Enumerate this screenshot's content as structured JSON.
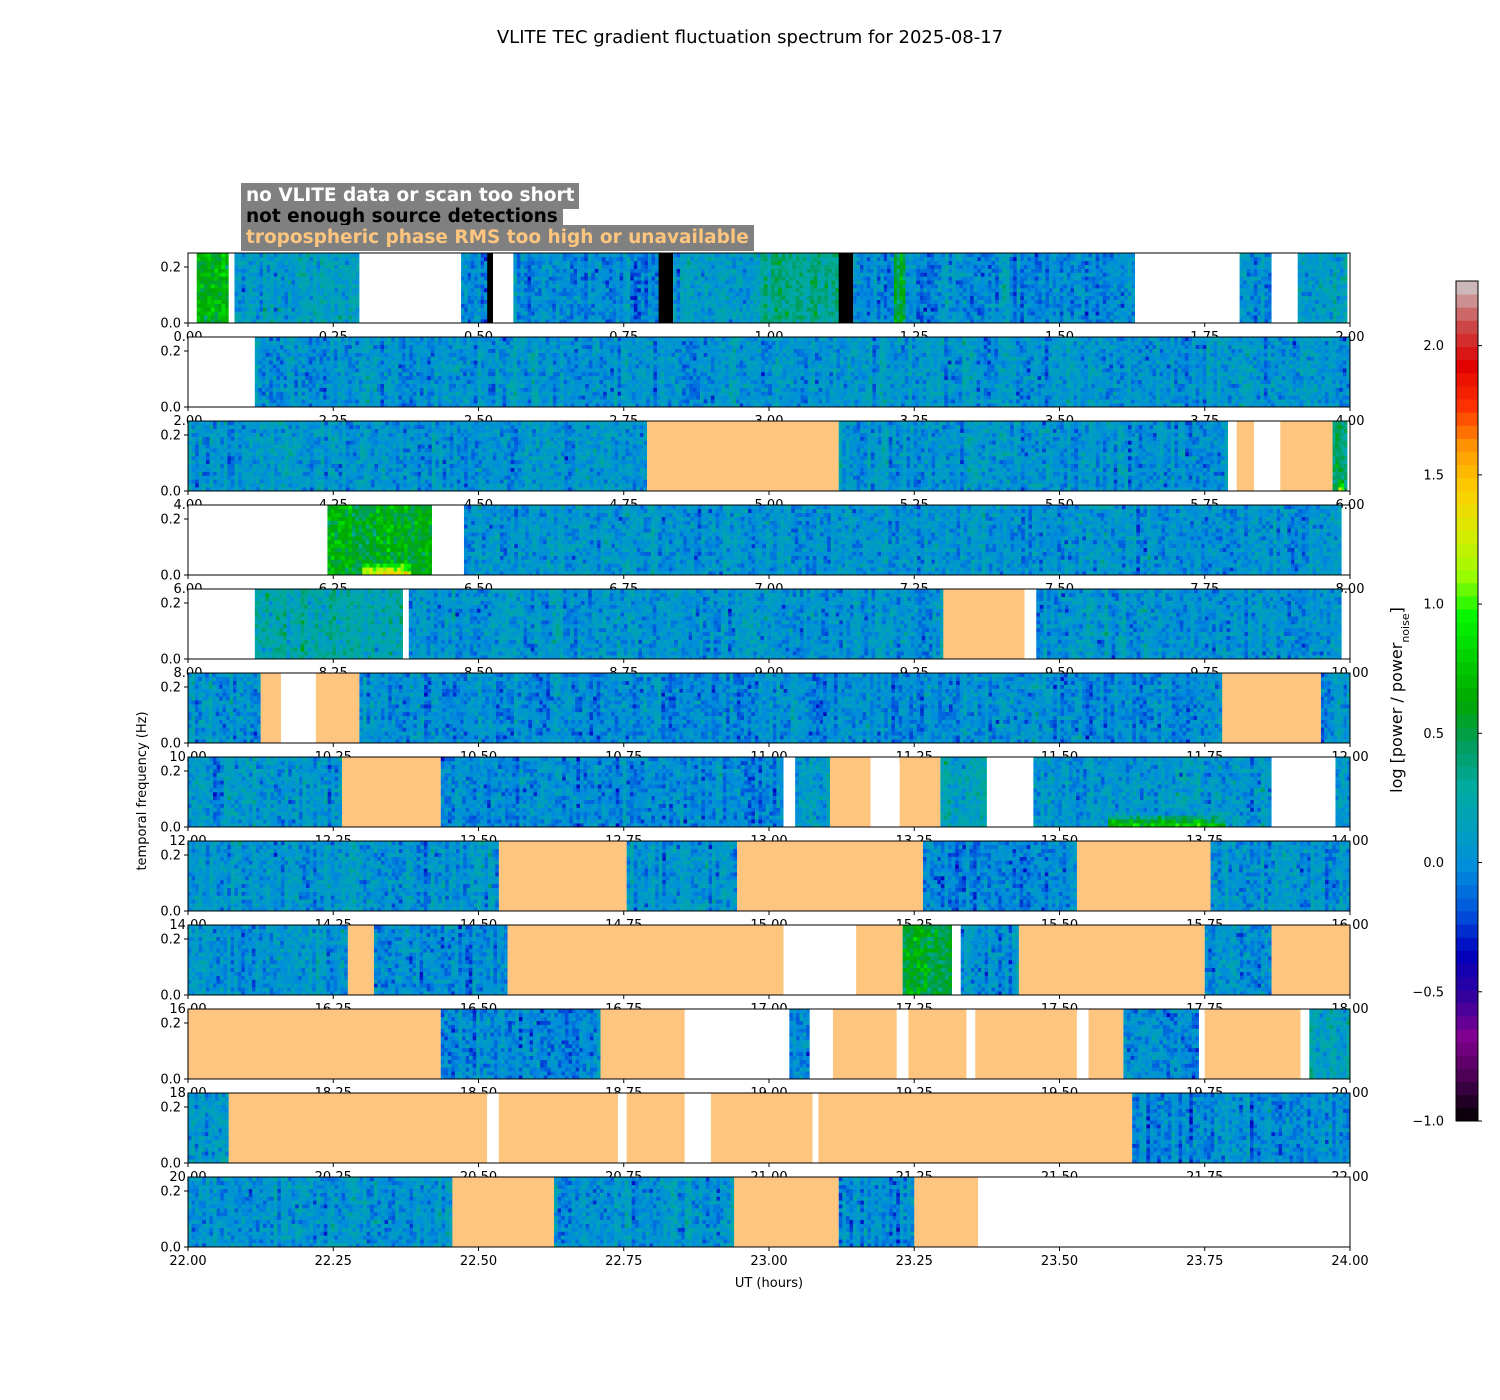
{
  "chart_data": {
    "type": "heatmap",
    "title": "VLITE TEC gradient fluctuation spectrum for 2025-08-17",
    "xlabel": "UT (hours)",
    "ylabel": "temporal frequency (Hz)",
    "ylim": [
      0,
      0.25
    ],
    "yticks": [
      0.0,
      0.2
    ],
    "ytick_labels": [
      "0.0",
      "0.2"
    ],
    "colorbar": {
      "label": "log [power / power",
      "label_sub": "noise",
      "label_end": "]",
      "range": [
        -1.0,
        2.25
      ],
      "ticks": [
        -1.0,
        -0.5,
        0.0,
        0.5,
        1.0,
        1.5,
        2.0
      ],
      "tick_labels": [
        "−1.0",
        "−0.5",
        "0.0",
        "0.5",
        "1.0",
        "1.5",
        "2.0"
      ]
    },
    "legend": [
      {
        "text": "no VLITE data or scan too short",
        "color": "#ffffff",
        "status": "no_data"
      },
      {
        "text": "not enough source detections",
        "color": "#000000",
        "status": "few_detections"
      },
      {
        "text": "tropospheric phase RMS too high or unavailable",
        "color": "#fdc57e",
        "status": "tropo"
      }
    ],
    "panels": [
      {
        "xlim": [
          0,
          2
        ],
        "xticks": [
          "0.00",
          "0.25",
          "0.50",
          "0.75",
          "1.00",
          "1.25",
          "1.50",
          "1.75",
          "2.00"
        ],
        "segments": [
          {
            "start": 0.0,
            "end": 0.015,
            "status": "no_data"
          },
          {
            "start": 0.015,
            "end": 0.07,
            "status": "data",
            "level": 0.6
          },
          {
            "start": 0.07,
            "end": 0.08,
            "status": "no_data"
          },
          {
            "start": 0.08,
            "end": 0.295,
            "status": "data",
            "level": 0.1
          },
          {
            "start": 0.295,
            "end": 0.47,
            "status": "no_data"
          },
          {
            "start": 0.47,
            "end": 0.515,
            "status": "data",
            "level": 0.0
          },
          {
            "start": 0.515,
            "end": 0.525,
            "status": "few_detections"
          },
          {
            "start": 0.525,
            "end": 0.56,
            "status": "no_data"
          },
          {
            "start": 0.56,
            "end": 0.81,
            "status": "data",
            "level": 0.0
          },
          {
            "start": 0.81,
            "end": 0.835,
            "status": "few_detections"
          },
          {
            "start": 0.835,
            "end": 0.985,
            "status": "data",
            "level": 0.1
          },
          {
            "start": 0.985,
            "end": 1.12,
            "status": "data",
            "level": 0.35
          },
          {
            "start": 1.12,
            "end": 1.145,
            "status": "few_detections"
          },
          {
            "start": 1.145,
            "end": 1.215,
            "status": "data",
            "level": 0.0
          },
          {
            "start": 1.215,
            "end": 1.235,
            "status": "data",
            "level": 0.55
          },
          {
            "start": 1.235,
            "end": 1.63,
            "status": "data",
            "level": 0.0
          },
          {
            "start": 1.63,
            "end": 1.81,
            "status": "no_data"
          },
          {
            "start": 1.81,
            "end": 1.865,
            "status": "data",
            "level": 0.05
          },
          {
            "start": 1.865,
            "end": 1.91,
            "status": "no_data"
          },
          {
            "start": 1.91,
            "end": 1.995,
            "status": "data",
            "level": 0.1
          }
        ]
      },
      {
        "xlim": [
          2,
          4
        ],
        "xticks": [
          "2.00",
          "2.25",
          "2.50",
          "2.75",
          "3.00",
          "3.25",
          "3.50",
          "3.75",
          "4.00"
        ],
        "segments": [
          {
            "start": 2.0,
            "end": 2.115,
            "status": "no_data"
          },
          {
            "start": 2.115,
            "end": 4.0,
            "status": "data",
            "level": 0.05
          }
        ]
      },
      {
        "xlim": [
          4,
          6
        ],
        "xticks": [
          "4.00",
          "4.25",
          "4.50",
          "4.75",
          "5.00",
          "5.25",
          "5.50",
          "5.75",
          "6.00"
        ],
        "segments": [
          {
            "start": 4.0,
            "end": 4.79,
            "status": "data",
            "level": 0.05
          },
          {
            "start": 4.79,
            "end": 5.12,
            "status": "tropo"
          },
          {
            "start": 5.12,
            "end": 5.79,
            "status": "data",
            "level": 0.05
          },
          {
            "start": 5.79,
            "end": 5.805,
            "status": "no_data"
          },
          {
            "start": 5.805,
            "end": 5.835,
            "status": "tropo"
          },
          {
            "start": 5.835,
            "end": 5.88,
            "status": "no_data"
          },
          {
            "start": 5.88,
            "end": 5.97,
            "status": "tropo"
          },
          {
            "start": 5.97,
            "end": 5.995,
            "status": "data",
            "level": 0.4,
            "hot": true
          }
        ]
      },
      {
        "xlim": [
          6,
          8
        ],
        "xticks": [
          "6.00",
          "6.25",
          "6.50",
          "6.75",
          "7.00",
          "7.25",
          "7.50",
          "7.75",
          "8.00"
        ],
        "segments": [
          {
            "start": 6.0,
            "end": 6.24,
            "status": "no_data"
          },
          {
            "start": 6.24,
            "end": 6.42,
            "status": "data",
            "level": 0.6,
            "hot": true
          },
          {
            "start": 6.42,
            "end": 6.475,
            "status": "no_data"
          },
          {
            "start": 6.475,
            "end": 7.985,
            "status": "data",
            "level": 0.05
          }
        ]
      },
      {
        "xlim": [
          8,
          10
        ],
        "xticks": [
          "8.00",
          "8.25",
          "8.50",
          "8.75",
          "9.00",
          "9.25",
          "9.50",
          "9.75",
          "10.00"
        ],
        "segments": [
          {
            "start": 8.0,
            "end": 8.115,
            "status": "no_data"
          },
          {
            "start": 8.115,
            "end": 8.37,
            "status": "data",
            "level": 0.25
          },
          {
            "start": 8.37,
            "end": 8.38,
            "status": "no_data"
          },
          {
            "start": 8.38,
            "end": 9.3,
            "status": "data",
            "level": 0.05
          },
          {
            "start": 9.3,
            "end": 9.44,
            "status": "tropo"
          },
          {
            "start": 9.44,
            "end": 9.46,
            "status": "no_data"
          },
          {
            "start": 9.46,
            "end": 9.985,
            "status": "data",
            "level": 0.05
          }
        ]
      },
      {
        "xlim": [
          10,
          12
        ],
        "xticks": [
          "10.00",
          "10.25",
          "10.50",
          "10.75",
          "11.00",
          "11.25",
          "11.50",
          "11.75",
          "12.00"
        ],
        "segments": [
          {
            "start": 10.0,
            "end": 10.125,
            "status": "data",
            "level": 0.05
          },
          {
            "start": 10.125,
            "end": 10.16,
            "status": "tropo"
          },
          {
            "start": 10.16,
            "end": 10.22,
            "status": "no_data"
          },
          {
            "start": 10.22,
            "end": 10.295,
            "status": "tropo"
          },
          {
            "start": 10.295,
            "end": 11.78,
            "status": "data",
            "level": 0.0
          },
          {
            "start": 11.78,
            "end": 11.95,
            "status": "tropo"
          },
          {
            "start": 11.95,
            "end": 12.0,
            "status": "data",
            "level": 0.05
          }
        ]
      },
      {
        "xlim": [
          12,
          14
        ],
        "xticks": [
          "12.00",
          "12.25",
          "12.50",
          "12.75",
          "13.00",
          "13.25",
          "13.50",
          "13.75",
          "14.00"
        ],
        "segments": [
          {
            "start": 12.0,
            "end": 12.265,
            "status": "data",
            "level": 0.05
          },
          {
            "start": 12.265,
            "end": 12.435,
            "status": "tropo"
          },
          {
            "start": 12.435,
            "end": 13.025,
            "status": "data",
            "level": 0.0
          },
          {
            "start": 13.025,
            "end": 13.045,
            "status": "no_data"
          },
          {
            "start": 13.045,
            "end": 13.105,
            "status": "data",
            "level": 0.05
          },
          {
            "start": 13.105,
            "end": 13.175,
            "status": "tropo"
          },
          {
            "start": 13.175,
            "end": 13.225,
            "status": "no_data"
          },
          {
            "start": 13.225,
            "end": 13.295,
            "status": "tropo"
          },
          {
            "start": 13.295,
            "end": 13.375,
            "status": "data",
            "level": 0.2
          },
          {
            "start": 13.375,
            "end": 13.455,
            "status": "no_data"
          },
          {
            "start": 13.455,
            "end": 13.865,
            "status": "data",
            "level": 0.05,
            "hot": true
          },
          {
            "start": 13.865,
            "end": 13.975,
            "status": "no_data"
          },
          {
            "start": 13.975,
            "end": 14.0,
            "status": "data",
            "level": 0.05
          }
        ]
      },
      {
        "xlim": [
          14,
          16
        ],
        "xticks": [
          "14.00",
          "14.25",
          "14.50",
          "14.75",
          "15.00",
          "15.25",
          "15.50",
          "15.75",
          "16.00"
        ],
        "segments": [
          {
            "start": 14.0,
            "end": 14.535,
            "status": "data",
            "level": 0.05
          },
          {
            "start": 14.535,
            "end": 14.755,
            "status": "tropo"
          },
          {
            "start": 14.755,
            "end": 14.945,
            "status": "data",
            "level": 0.05
          },
          {
            "start": 14.945,
            "end": 15.265,
            "status": "tropo"
          },
          {
            "start": 15.265,
            "end": 15.53,
            "status": "data",
            "level": 0.0
          },
          {
            "start": 15.53,
            "end": 15.76,
            "status": "tropo"
          },
          {
            "start": 15.76,
            "end": 16.0,
            "status": "data",
            "level": 0.05
          }
        ]
      },
      {
        "xlim": [
          16,
          18
        ],
        "xticks": [
          "16.00",
          "16.25",
          "16.50",
          "16.75",
          "17.00",
          "17.25",
          "17.50",
          "17.75",
          "18.00"
        ],
        "segments": [
          {
            "start": 16.0,
            "end": 16.275,
            "status": "data",
            "level": 0.05
          },
          {
            "start": 16.275,
            "end": 16.32,
            "status": "tropo"
          },
          {
            "start": 16.32,
            "end": 16.55,
            "status": "data",
            "level": 0.0
          },
          {
            "start": 16.55,
            "end": 17.025,
            "status": "tropo"
          },
          {
            "start": 17.025,
            "end": 17.15,
            "status": "no_data"
          },
          {
            "start": 17.15,
            "end": 17.23,
            "status": "tropo"
          },
          {
            "start": 17.23,
            "end": 17.315,
            "status": "data",
            "level": 0.55
          },
          {
            "start": 17.315,
            "end": 17.33,
            "status": "no_data"
          },
          {
            "start": 17.33,
            "end": 17.43,
            "status": "data",
            "level": 0.05
          },
          {
            "start": 17.43,
            "end": 17.75,
            "status": "tropo"
          },
          {
            "start": 17.75,
            "end": 17.865,
            "status": "data",
            "level": 0.0
          },
          {
            "start": 17.865,
            "end": 18.0,
            "status": "tropo"
          }
        ]
      },
      {
        "xlim": [
          18,
          20
        ],
        "xticks": [
          "18.00",
          "18.25",
          "18.50",
          "18.75",
          "19.00",
          "19.25",
          "19.50",
          "19.75",
          "20.00"
        ],
        "segments": [
          {
            "start": 18.0,
            "end": 18.435,
            "status": "tropo"
          },
          {
            "start": 18.435,
            "end": 18.71,
            "status": "data",
            "level": 0.0
          },
          {
            "start": 18.71,
            "end": 18.855,
            "status": "tropo"
          },
          {
            "start": 18.855,
            "end": 19.035,
            "status": "no_data"
          },
          {
            "start": 19.035,
            "end": 19.07,
            "status": "data",
            "level": 0.05
          },
          {
            "start": 19.07,
            "end": 19.11,
            "status": "no_data"
          },
          {
            "start": 19.11,
            "end": 19.22,
            "status": "tropo"
          },
          {
            "start": 19.22,
            "end": 19.24,
            "status": "no_data"
          },
          {
            "start": 19.24,
            "end": 19.34,
            "status": "tropo"
          },
          {
            "start": 19.34,
            "end": 19.355,
            "status": "no_data"
          },
          {
            "start": 19.355,
            "end": 19.53,
            "status": "tropo"
          },
          {
            "start": 19.53,
            "end": 19.55,
            "status": "no_data"
          },
          {
            "start": 19.55,
            "end": 19.61,
            "status": "tropo"
          },
          {
            "start": 19.61,
            "end": 19.74,
            "status": "data",
            "level": 0.0
          },
          {
            "start": 19.74,
            "end": 19.75,
            "status": "no_data"
          },
          {
            "start": 19.75,
            "end": 19.915,
            "status": "tropo"
          },
          {
            "start": 19.915,
            "end": 19.93,
            "status": "no_data"
          },
          {
            "start": 19.93,
            "end": 20.0,
            "status": "data",
            "level": 0.15
          }
        ]
      },
      {
        "xlim": [
          20,
          22
        ],
        "xticks": [
          "20.00",
          "20.25",
          "20.50",
          "20.75",
          "21.00",
          "21.25",
          "21.50",
          "21.75",
          "22.00"
        ],
        "segments": [
          {
            "start": 20.0,
            "end": 20.07,
            "status": "data",
            "level": 0.1
          },
          {
            "start": 20.07,
            "end": 20.515,
            "status": "tropo"
          },
          {
            "start": 20.515,
            "end": 20.535,
            "status": "no_data"
          },
          {
            "start": 20.535,
            "end": 20.74,
            "status": "tropo"
          },
          {
            "start": 20.74,
            "end": 20.755,
            "status": "no_data"
          },
          {
            "start": 20.755,
            "end": 20.855,
            "status": "tropo"
          },
          {
            "start": 20.855,
            "end": 20.9,
            "status": "no_data"
          },
          {
            "start": 20.9,
            "end": 21.075,
            "status": "tropo"
          },
          {
            "start": 21.075,
            "end": 21.085,
            "status": "no_data"
          },
          {
            "start": 21.085,
            "end": 21.625,
            "status": "tropo"
          },
          {
            "start": 21.625,
            "end": 22.0,
            "status": "data",
            "level": 0.0
          }
        ]
      },
      {
        "xlim": [
          22,
          24
        ],
        "xticks": [
          "22.00",
          "22.25",
          "22.50",
          "22.75",
          "23.00",
          "23.25",
          "23.50",
          "23.75",
          "24.00"
        ],
        "segments": [
          {
            "start": 22.0,
            "end": 22.455,
            "status": "data",
            "level": 0.05
          },
          {
            "start": 22.455,
            "end": 22.63,
            "status": "tropo"
          },
          {
            "start": 22.63,
            "end": 22.94,
            "status": "data",
            "level": 0.05
          },
          {
            "start": 22.94,
            "end": 23.12,
            "status": "tropo"
          },
          {
            "start": 23.12,
            "end": 23.25,
            "status": "data",
            "level": 0.0
          },
          {
            "start": 23.25,
            "end": 23.36,
            "status": "tropo"
          },
          {
            "start": 23.36,
            "end": 24.0,
            "status": "no_data"
          }
        ]
      }
    ]
  }
}
